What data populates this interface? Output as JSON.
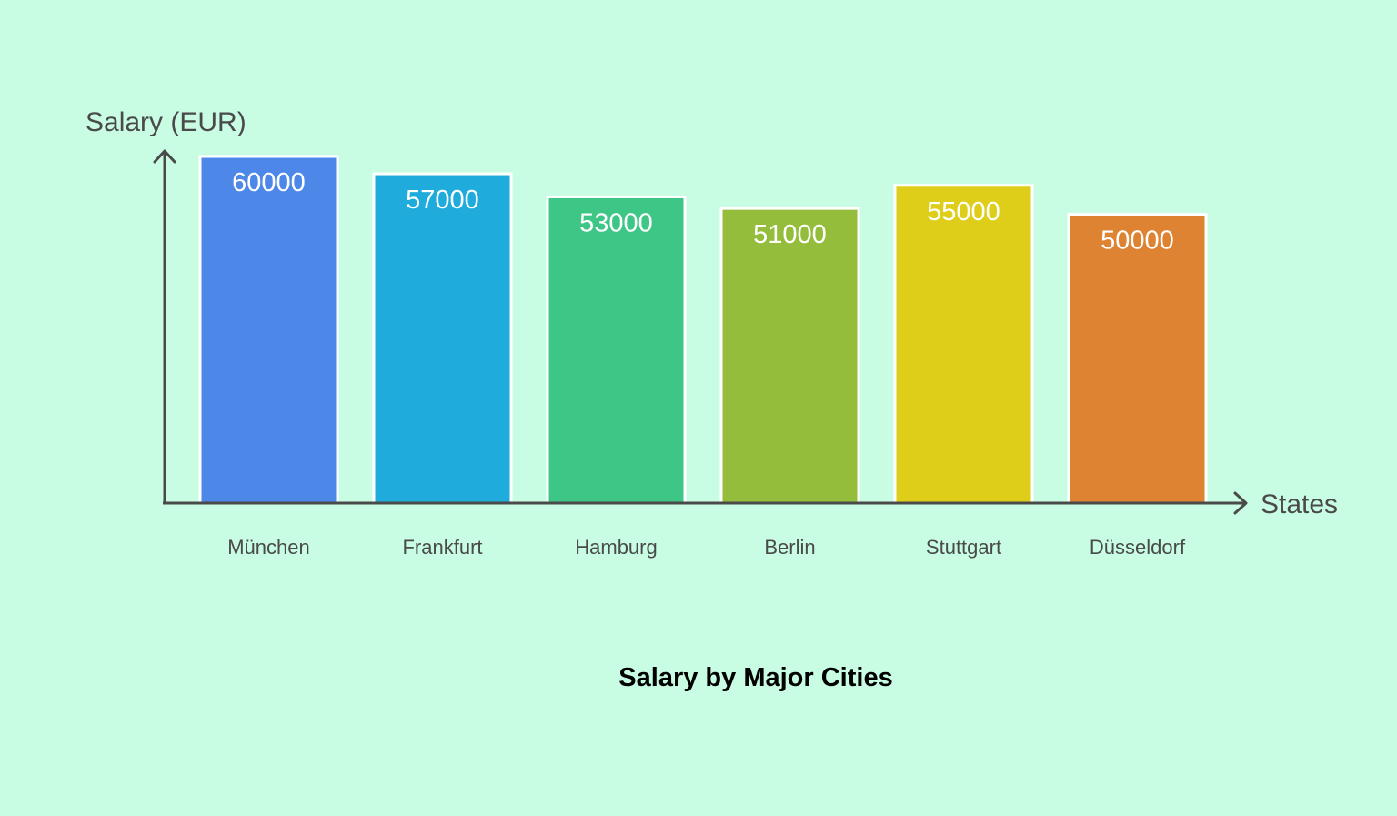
{
  "chart_data": {
    "type": "bar",
    "title": "Salary by Major Cities",
    "xlabel": "States",
    "ylabel": "Salary (EUR)",
    "categories": [
      "München",
      "Frankfurt",
      "Hamburg",
      "Berlin",
      "Stuttgart",
      "Düsseldorf"
    ],
    "values": [
      60000,
      57000,
      53000,
      51000,
      55000,
      50000
    ],
    "colors": [
      "#4d88e8",
      "#1fabdb",
      "#3ec686",
      "#93bd3a",
      "#dece19",
      "#de8331"
    ],
    "ylim": [
      0,
      60000
    ],
    "grid": false,
    "legend": "none",
    "value_labels": true
  }
}
